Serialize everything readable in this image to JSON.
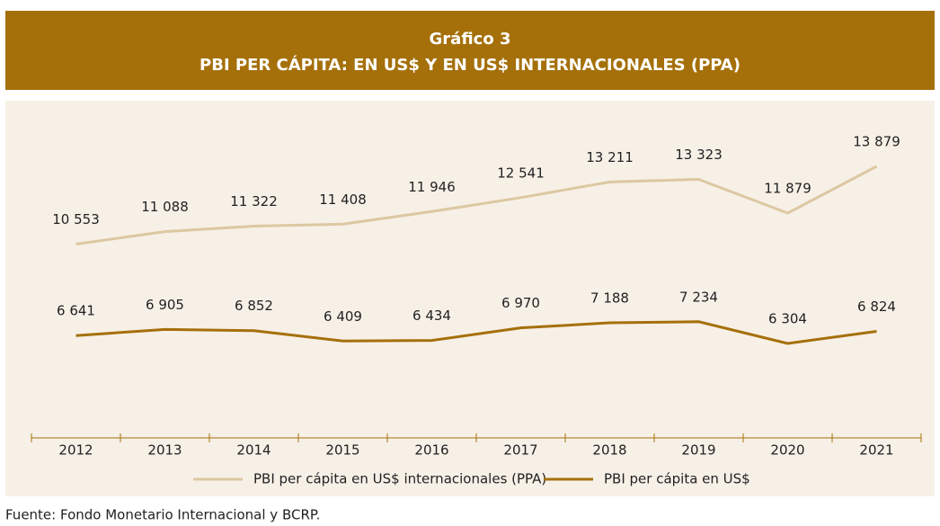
{
  "chart_data": {
    "type": "line",
    "title": "Gráfico 3",
    "subtitle": "PBI PER CÁPITA: EN US$ Y EN US$ INTERNACIONALES (PPA)",
    "categories": [
      "2012",
      "2013",
      "2014",
      "2015",
      "2016",
      "2017",
      "2018",
      "2019",
      "2020",
      "2021"
    ],
    "series": [
      {
        "name": "PBI per cápita en US$ internacionales (PPA)",
        "color": "#dcc8a2",
        "values": [
          10553,
          11088,
          11322,
          11408,
          11946,
          12541,
          13211,
          13323,
          11879,
          13879
        ],
        "value_labels": [
          "10 553",
          "11 088",
          "11 322",
          "11 408",
          "11 946",
          "12 541",
          "13 211",
          "13 323",
          "11 879",
          "13 879"
        ]
      },
      {
        "name": "PBI per cápita en US$",
        "color": "#a5700a",
        "values": [
          6641,
          6905,
          6852,
          6409,
          6434,
          6970,
          7188,
          7234,
          6304,
          6824
        ],
        "value_labels": [
          "6 641",
          "6 905",
          "6 852",
          "6 409",
          "6 434",
          "6 970",
          "7 188",
          "7 234",
          "6 304",
          "6 824"
        ]
      }
    ],
    "source": "Fuente: Fondo Monetario Internacional y BCRP."
  }
}
